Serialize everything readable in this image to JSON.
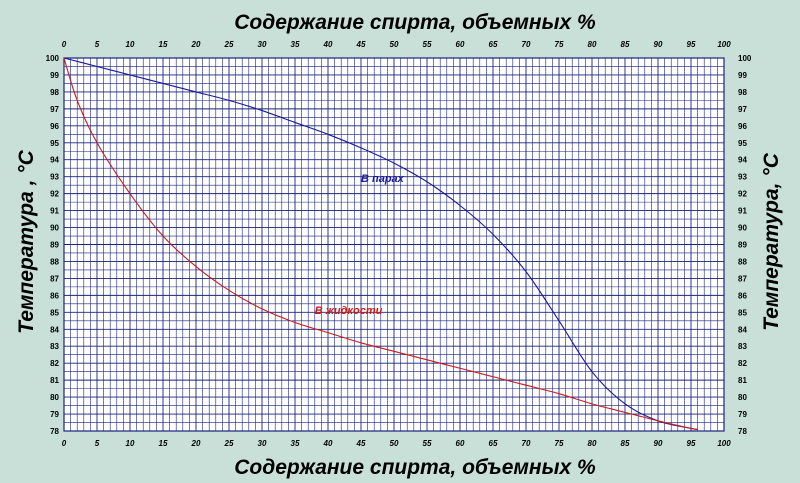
{
  "chart_data": {
    "type": "line",
    "title_top": "Содержание спирта, объемных %",
    "title_bottom": "Содержание спирта, объемных %",
    "ylabel_left": "Температура , °C",
    "ylabel_right": "Температура, °C",
    "xlim": [
      0,
      100
    ],
    "ylim": [
      78,
      100
    ],
    "x_ticks": [
      "0",
      "5",
      "10",
      "15",
      "20",
      "25",
      "30",
      "35",
      "40",
      "45",
      "50",
      "55",
      "60",
      "65",
      "70",
      "75",
      "80",
      "85",
      "90",
      "95",
      "100"
    ],
    "y_ticks": [
      "78",
      "79",
      "80",
      "81",
      "82",
      "83",
      "84",
      "85",
      "86",
      "87",
      "88",
      "89",
      "90",
      "91",
      "92",
      "93",
      "94",
      "95",
      "96",
      "97",
      "98",
      "99",
      "100"
    ],
    "grid": true,
    "colors": {
      "background": "#c8e0d8",
      "plot": "#ffffff",
      "grid": "#1a237e",
      "vapor": "#1a1a9a",
      "liquid": "#cc1a1a"
    },
    "series": [
      {
        "name": "В парах",
        "color": "#1a1a9a",
        "x": [
          0,
          5,
          10,
          15,
          20,
          25,
          30,
          35,
          40,
          45,
          50,
          55,
          60,
          65,
          70,
          75,
          80,
          85,
          90,
          95,
          96
        ],
        "y": [
          100,
          99.5,
          99.0,
          98.5,
          98.0,
          97.5,
          96.9,
          96.2,
          95.5,
          94.7,
          93.8,
          92.7,
          91.3,
          89.6,
          87.4,
          84.5,
          81.5,
          79.6,
          78.6,
          78.15,
          78.1
        ]
      },
      {
        "name": "В жидкости",
        "color": "#cc1a1a",
        "x": [
          0,
          2,
          5,
          10,
          15,
          20,
          25,
          30,
          35,
          40,
          45,
          50,
          55,
          60,
          65,
          70,
          75,
          80,
          85,
          90,
          95,
          96
        ],
        "y": [
          100,
          97.5,
          95.0,
          92.0,
          89.5,
          87.7,
          86.3,
          85.2,
          84.4,
          83.8,
          83.2,
          82.7,
          82.2,
          81.7,
          81.2,
          80.7,
          80.2,
          79.6,
          79.1,
          78.6,
          78.15,
          78.1
        ]
      }
    ],
    "annotations": [
      {
        "text": "В парах",
        "x": 45,
        "y": 92.7,
        "color": "#1a1a9a"
      },
      {
        "text": "В жидкости",
        "x": 38,
        "y": 84.9,
        "color": "#cc1a1a"
      }
    ]
  }
}
